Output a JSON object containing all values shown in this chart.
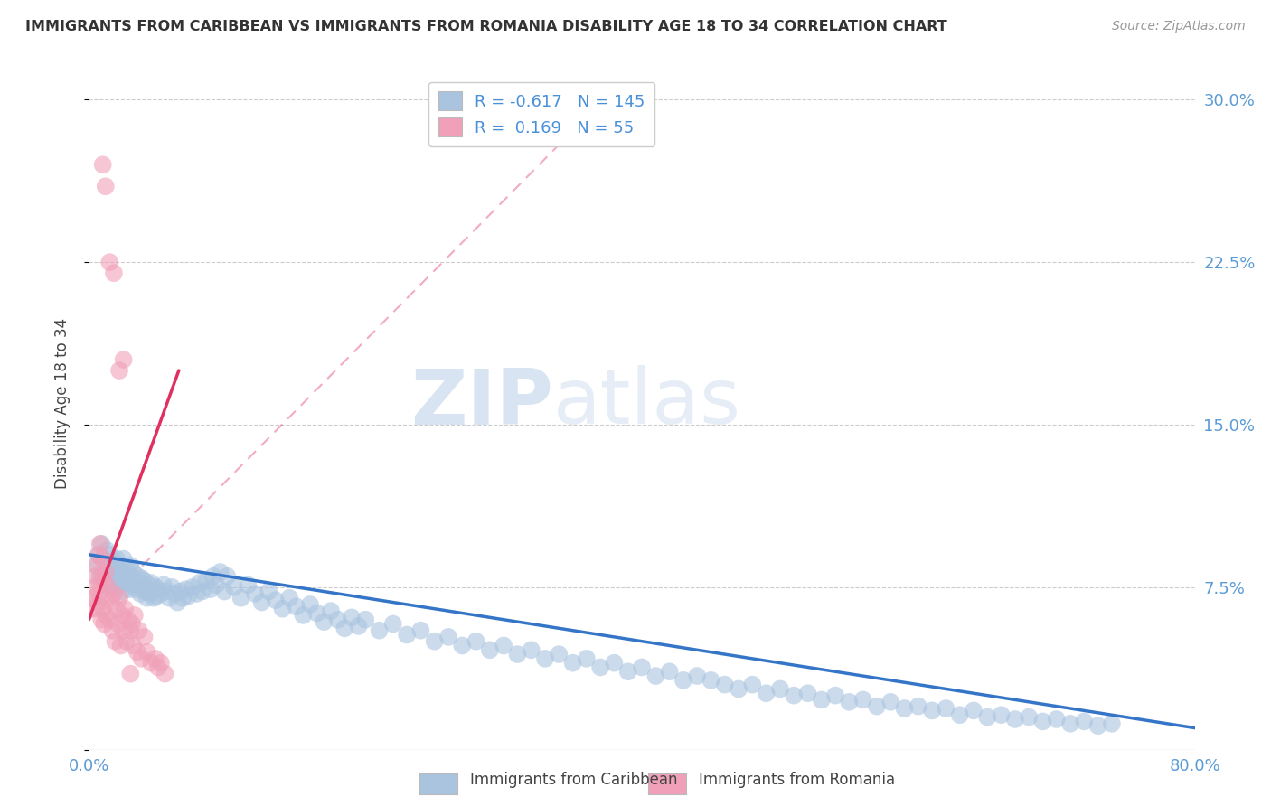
{
  "title": "IMMIGRANTS FROM CARIBBEAN VS IMMIGRANTS FROM ROMANIA DISABILITY AGE 18 TO 34 CORRELATION CHART",
  "source_text": "Source: ZipAtlas.com",
  "ylabel": "Disability Age 18 to 34",
  "xmin": 0.0,
  "xmax": 0.8,
  "ymin": 0.0,
  "ymax": 0.32,
  "yticks": [
    0.0,
    0.075,
    0.15,
    0.225,
    0.3
  ],
  "yticklabels": [
    "",
    "7.5%",
    "15.0%",
    "22.5%",
    "30.0%"
  ],
  "xticks": [
    0.0,
    0.1,
    0.2,
    0.3,
    0.4,
    0.5,
    0.6,
    0.7,
    0.8
  ],
  "xticklabels": [
    "0.0%",
    "",
    "",
    "",
    "",
    "",
    "",
    "",
    "80.0%"
  ],
  "caribbean_color": "#aac4e0",
  "romania_color": "#f0a0b8",
  "caribbean_line_color": "#3575c8",
  "romania_line_color": "#e03060",
  "R_caribbean": -0.617,
  "N_caribbean": 145,
  "R_romania": 0.169,
  "N_romania": 55,
  "watermark_zip": "ZIP",
  "watermark_atlas": "atlas",
  "caribbean_line_x0": 0.0,
  "caribbean_line_x1": 0.8,
  "caribbean_line_y0": 0.09,
  "caribbean_line_y1": 0.01,
  "romania_line_x0": 0.0,
  "romania_line_x1": 0.065,
  "romania_line_y0": 0.06,
  "romania_line_y1": 0.175,
  "caribbean_scatter_x": [
    0.005,
    0.007,
    0.008,
    0.009,
    0.01,
    0.011,
    0.012,
    0.013,
    0.014,
    0.015,
    0.015,
    0.016,
    0.017,
    0.018,
    0.019,
    0.02,
    0.02,
    0.021,
    0.022,
    0.023,
    0.024,
    0.025,
    0.025,
    0.026,
    0.027,
    0.028,
    0.029,
    0.03,
    0.03,
    0.031,
    0.032,
    0.033,
    0.034,
    0.035,
    0.036,
    0.037,
    0.038,
    0.039,
    0.04,
    0.041,
    0.042,
    0.043,
    0.044,
    0.045,
    0.046,
    0.047,
    0.048,
    0.049,
    0.05,
    0.052,
    0.054,
    0.056,
    0.058,
    0.06,
    0.062,
    0.064,
    0.066,
    0.068,
    0.07,
    0.072,
    0.075,
    0.078,
    0.08,
    0.082,
    0.085,
    0.088,
    0.09,
    0.092,
    0.095,
    0.098,
    0.1,
    0.105,
    0.11,
    0.115,
    0.12,
    0.125,
    0.13,
    0.135,
    0.14,
    0.145,
    0.15,
    0.155,
    0.16,
    0.165,
    0.17,
    0.175,
    0.18,
    0.185,
    0.19,
    0.195,
    0.2,
    0.21,
    0.22,
    0.23,
    0.24,
    0.25,
    0.26,
    0.27,
    0.28,
    0.29,
    0.3,
    0.31,
    0.32,
    0.33,
    0.34,
    0.35,
    0.36,
    0.37,
    0.38,
    0.39,
    0.4,
    0.41,
    0.42,
    0.43,
    0.44,
    0.45,
    0.46,
    0.47,
    0.48,
    0.49,
    0.5,
    0.51,
    0.52,
    0.53,
    0.54,
    0.55,
    0.56,
    0.57,
    0.58,
    0.59,
    0.6,
    0.61,
    0.62,
    0.63,
    0.64,
    0.65,
    0.66,
    0.67,
    0.68,
    0.69,
    0.7,
    0.71,
    0.72,
    0.73,
    0.74
  ],
  "caribbean_scatter_y": [
    0.085,
    0.09,
    0.08,
    0.095,
    0.088,
    0.082,
    0.078,
    0.092,
    0.086,
    0.075,
    0.09,
    0.083,
    0.079,
    0.087,
    0.074,
    0.088,
    0.082,
    0.076,
    0.085,
    0.08,
    0.073,
    0.088,
    0.082,
    0.077,
    0.083,
    0.078,
    0.074,
    0.085,
    0.08,
    0.076,
    0.082,
    0.078,
    0.074,
    0.08,
    0.075,
    0.072,
    0.079,
    0.074,
    0.078,
    0.073,
    0.07,
    0.076,
    0.072,
    0.077,
    0.073,
    0.07,
    0.075,
    0.071,
    0.074,
    0.072,
    0.076,
    0.073,
    0.07,
    0.075,
    0.072,
    0.068,
    0.073,
    0.07,
    0.074,
    0.071,
    0.075,
    0.072,
    0.077,
    0.073,
    0.078,
    0.074,
    0.08,
    0.076,
    0.082,
    0.073,
    0.08,
    0.075,
    0.07,
    0.076,
    0.072,
    0.068,
    0.073,
    0.069,
    0.065,
    0.07,
    0.066,
    0.062,
    0.067,
    0.063,
    0.059,
    0.064,
    0.06,
    0.056,
    0.061,
    0.057,
    0.06,
    0.055,
    0.058,
    0.053,
    0.055,
    0.05,
    0.052,
    0.048,
    0.05,
    0.046,
    0.048,
    0.044,
    0.046,
    0.042,
    0.044,
    0.04,
    0.042,
    0.038,
    0.04,
    0.036,
    0.038,
    0.034,
    0.036,
    0.032,
    0.034,
    0.032,
    0.03,
    0.028,
    0.03,
    0.026,
    0.028,
    0.025,
    0.026,
    0.023,
    0.025,
    0.022,
    0.023,
    0.02,
    0.022,
    0.019,
    0.02,
    0.018,
    0.019,
    0.016,
    0.018,
    0.015,
    0.016,
    0.014,
    0.015,
    0.013,
    0.014,
    0.012,
    0.013,
    0.011,
    0.012
  ],
  "romania_scatter_x": [
    0.003,
    0.004,
    0.005,
    0.005,
    0.006,
    0.006,
    0.007,
    0.007,
    0.008,
    0.008,
    0.009,
    0.009,
    0.01,
    0.01,
    0.011,
    0.011,
    0.012,
    0.012,
    0.013,
    0.014,
    0.015,
    0.016,
    0.017,
    0.018,
    0.019,
    0.02,
    0.021,
    0.022,
    0.023,
    0.024,
    0.025,
    0.026,
    0.027,
    0.028,
    0.03,
    0.031,
    0.032,
    0.033,
    0.035,
    0.036,
    0.038,
    0.04,
    0.042,
    0.045,
    0.048,
    0.05,
    0.052,
    0.055,
    0.01,
    0.012,
    0.015,
    0.018,
    0.022,
    0.025,
    0.03
  ],
  "romania_scatter_y": [
    0.07,
    0.075,
    0.065,
    0.08,
    0.068,
    0.085,
    0.072,
    0.09,
    0.076,
    0.095,
    0.06,
    0.08,
    0.065,
    0.088,
    0.058,
    0.078,
    0.062,
    0.082,
    0.07,
    0.075,
    0.06,
    0.068,
    0.055,
    0.072,
    0.05,
    0.065,
    0.058,
    0.07,
    0.048,
    0.062,
    0.055,
    0.065,
    0.05,
    0.06,
    0.055,
    0.058,
    0.048,
    0.062,
    0.045,
    0.055,
    0.042,
    0.052,
    0.045,
    0.04,
    0.042,
    0.038,
    0.04,
    0.035,
    0.27,
    0.26,
    0.225,
    0.22,
    0.175,
    0.18,
    0.035
  ]
}
